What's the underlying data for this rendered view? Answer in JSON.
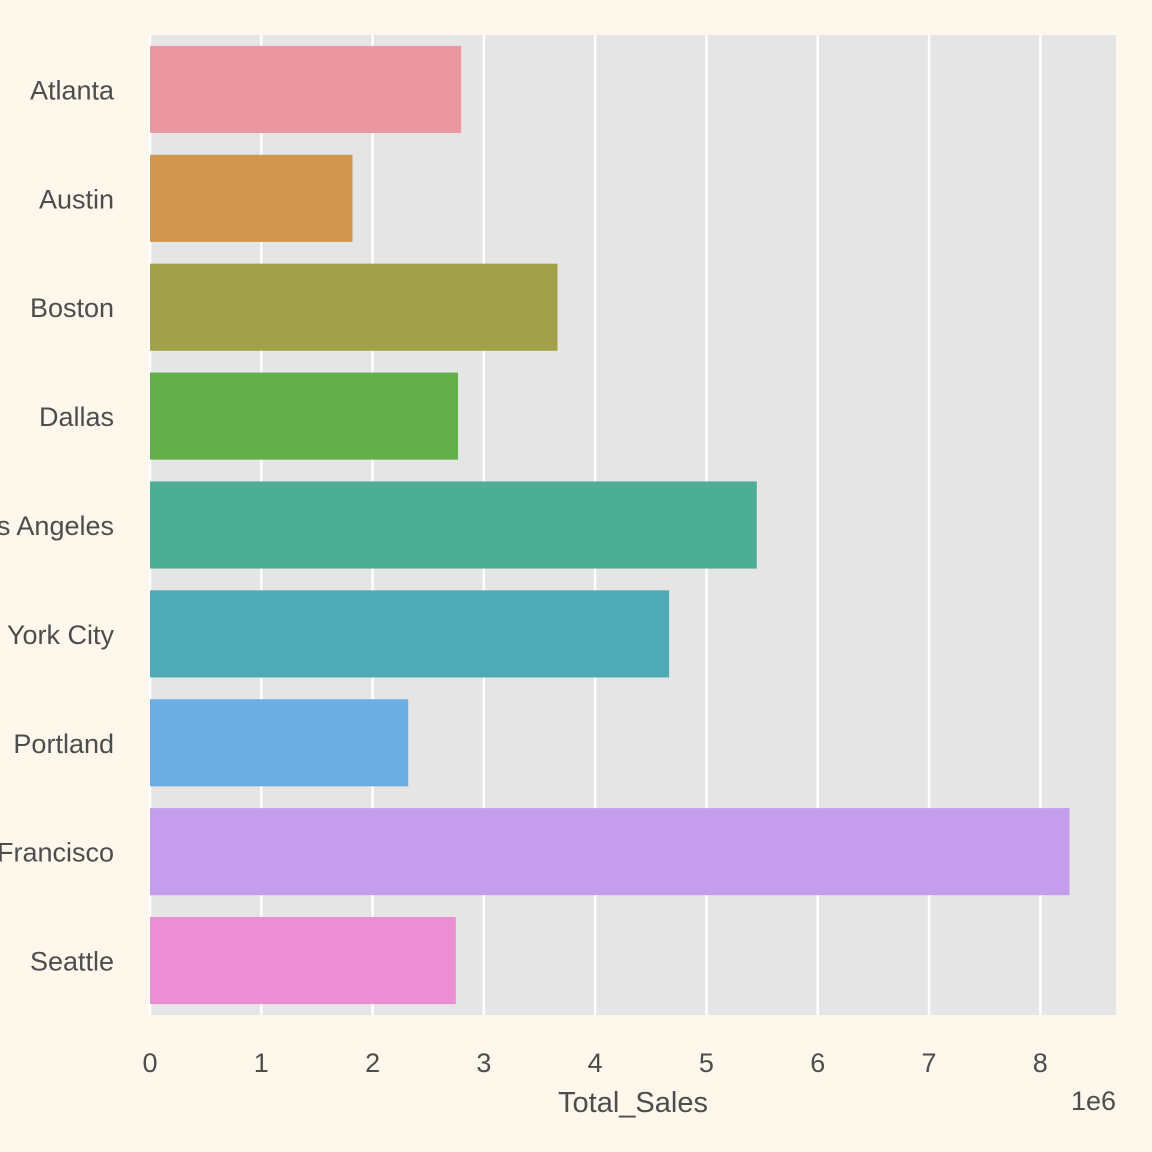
{
  "chart_data": {
    "type": "bar",
    "orientation": "horizontal",
    "categories": [
      "Atlanta",
      "Austin",
      "Boston",
      "Dallas",
      "Los Angeles",
      "New York City",
      "Portland",
      "San Francisco",
      "Seattle"
    ],
    "values": [
      2795577,
      1819582,
      3661642,
      2767975,
      5452570,
      4664317,
      2320490,
      8262204,
      2747755
    ],
    "colors": [
      "#eb96a1",
      "#d1974f",
      "#a3a04a",
      "#63b04b",
      "#4cae95",
      "#4eabb6",
      "#6daee2",
      "#c49ded",
      "#eb8ed3"
    ],
    "xlabel": "Total_Sales",
    "ylabel": "",
    "xlim": [
      0,
      8680000
    ],
    "xticks": [
      0,
      1,
      2,
      3,
      4,
      5,
      6,
      7,
      8
    ],
    "x_offset_label": "1e6",
    "grid": true,
    "legend": "none"
  },
  "theme": {
    "page_background": "#fdf7ec",
    "plot_background": "#e5e5e5",
    "grid_color": "#ffffff",
    "text_color": "#4d4d4d"
  }
}
